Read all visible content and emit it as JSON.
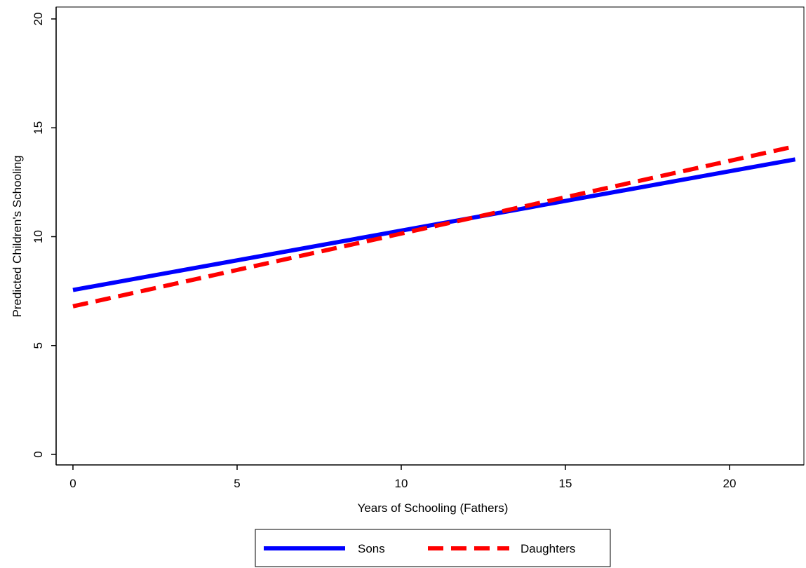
{
  "chart_data": {
    "type": "line",
    "title": "",
    "xlabel": "Years of Schooling (Fathers)",
    "ylabel": "Predicted Children's Schooling",
    "xlim": [
      0,
      22
    ],
    "ylim": [
      0,
      20
    ],
    "xticks": [
      0,
      5,
      10,
      15,
      20
    ],
    "yticks": [
      0,
      5,
      10,
      15,
      20
    ],
    "grid": false,
    "legend_position": "bottom",
    "series": [
      {
        "name": "Sons",
        "color": "#0000ff",
        "style": "solid",
        "x": [
          0,
          22
        ],
        "y": [
          7.55,
          13.55
        ]
      },
      {
        "name": "Daughters",
        "color": "#ff0000",
        "style": "dashed",
        "x": [
          0,
          22
        ],
        "y": [
          6.8,
          14.15
        ]
      }
    ]
  }
}
